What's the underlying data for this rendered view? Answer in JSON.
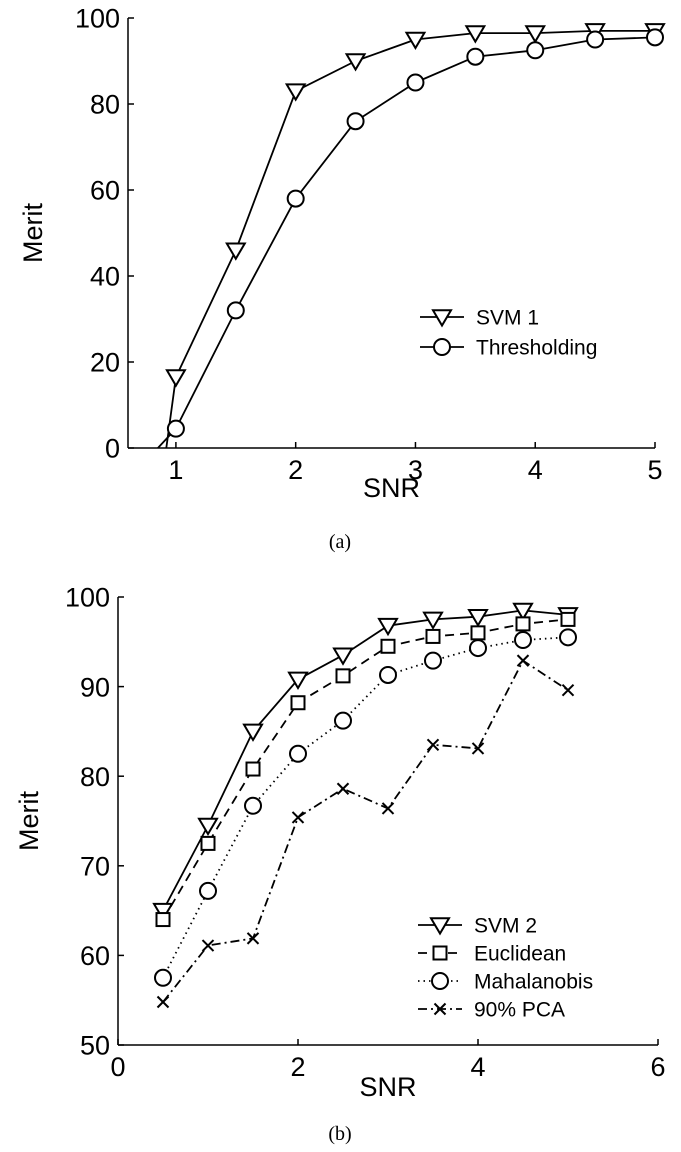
{
  "chart_data": [
    {
      "type": "line",
      "caption": "(a)",
      "xlabel": "SNR",
      "ylabel": "Merit",
      "xlim": [
        0.6,
        5
      ],
      "ylim": [
        0,
        100
      ],
      "xticks": [
        1,
        2,
        3,
        4,
        5
      ],
      "yticks": [
        0,
        20,
        40,
        60,
        80,
        100
      ],
      "grid": false,
      "legend_position": "center-right",
      "series": [
        {
          "name": "SVM 1",
          "marker": "triangle-down",
          "dash": "solid",
          "x": [
            0.92,
            1.0,
            1.5,
            2.0,
            2.5,
            3.0,
            3.5,
            4.0,
            4.5,
            5.0
          ],
          "y": [
            0,
            16.5,
            46,
            83,
            90,
            95,
            96.5,
            96.5,
            97,
            97
          ],
          "marked": [
            false,
            true,
            true,
            true,
            true,
            true,
            true,
            true,
            true,
            true
          ]
        },
        {
          "name": "Thresholding",
          "marker": "circle",
          "dash": "solid",
          "x": [
            0.85,
            1.0,
            1.5,
            2.0,
            2.5,
            3.0,
            3.5,
            4.0,
            4.5,
            5.0
          ],
          "y": [
            0,
            4.5,
            32,
            58,
            76,
            85,
            91,
            92.5,
            95,
            95.5
          ],
          "marked": [
            false,
            true,
            true,
            true,
            true,
            true,
            true,
            true,
            true,
            true
          ]
        }
      ]
    },
    {
      "type": "line",
      "caption": "(b)",
      "xlabel": "SNR",
      "ylabel": "Merit",
      "xlim": [
        0,
        6
      ],
      "ylim": [
        50,
        100
      ],
      "xticks": [
        0,
        2,
        4,
        6
      ],
      "yticks": [
        50,
        60,
        70,
        80,
        90,
        100
      ],
      "grid": false,
      "legend_position": "bottom-right",
      "series": [
        {
          "name": "SVM 2",
          "marker": "triangle-down",
          "dash": "solid",
          "x": [
            0.5,
            1.0,
            1.5,
            2.0,
            2.5,
            3.0,
            3.5,
            4.0,
            4.5,
            5.0
          ],
          "y": [
            65,
            74.5,
            85,
            90.8,
            93.5,
            96.8,
            97.5,
            97.8,
            98.5,
            98
          ],
          "marked": [
            true,
            true,
            true,
            true,
            true,
            true,
            true,
            true,
            true,
            true
          ]
        },
        {
          "name": "Euclidean",
          "marker": "square",
          "dash": "dashed",
          "x": [
            0.5,
            1.0,
            1.5,
            2.0,
            2.5,
            3.0,
            3.5,
            4.0,
            4.5,
            5.0
          ],
          "y": [
            64,
            72.5,
            80.8,
            88.2,
            91.2,
            94.5,
            95.6,
            96,
            97,
            97.5
          ],
          "marked": [
            true,
            true,
            true,
            true,
            true,
            true,
            true,
            true,
            true,
            true
          ]
        },
        {
          "name": "Mahalanobis",
          "marker": "circle",
          "dash": "dotted",
          "x": [
            0.5,
            1.0,
            1.5,
            2.0,
            2.5,
            3.0,
            3.5,
            4.0,
            4.5,
            5.0
          ],
          "y": [
            57.5,
            67.2,
            76.7,
            82.5,
            86.2,
            91.3,
            92.9,
            94.3,
            95.2,
            95.5
          ],
          "marked": [
            true,
            true,
            true,
            true,
            true,
            true,
            true,
            true,
            true,
            true
          ]
        },
        {
          "name": "90% PCA",
          "marker": "x",
          "dash": "dashdot",
          "x": [
            0.5,
            1.0,
            1.5,
            2.0,
            2.5,
            3.0,
            3.5,
            4.0,
            4.5,
            5.0
          ],
          "y": [
            54.8,
            61.1,
            61.9,
            75.4,
            78.6,
            76.4,
            83.5,
            83.1,
            92.9,
            89.6
          ],
          "marked": [
            true,
            true,
            true,
            true,
            true,
            true,
            true,
            true,
            true,
            true
          ]
        }
      ]
    }
  ]
}
